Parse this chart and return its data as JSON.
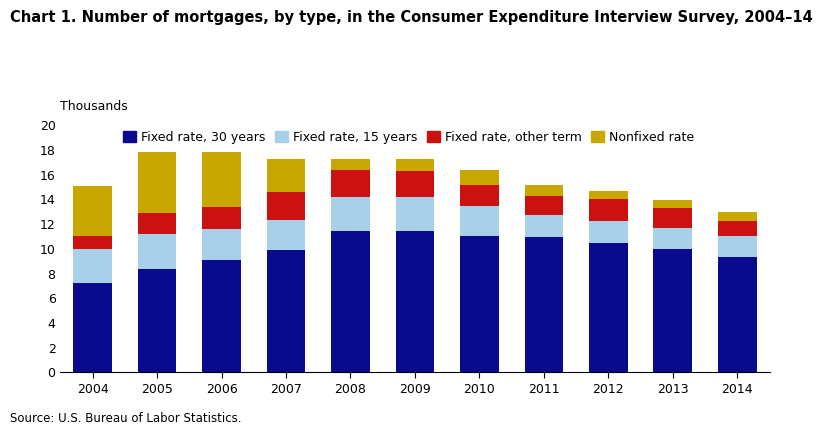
{
  "title": "Chart 1. Number of mortgages, by type, in the Consumer Expenditure Interview Survey, 2004–14",
  "ylabel": "Thousands",
  "source": "Source: U.S. Bureau of Labor Statistics.",
  "years": [
    2004,
    2005,
    2006,
    2007,
    2008,
    2009,
    2010,
    2011,
    2012,
    2013,
    2014
  ],
  "fixed_30": [
    7.2,
    8.3,
    9.0,
    9.8,
    11.4,
    11.4,
    11.0,
    10.9,
    10.4,
    9.9,
    9.3
  ],
  "fixed_15": [
    2.7,
    2.8,
    2.5,
    2.5,
    2.7,
    2.7,
    2.4,
    1.8,
    1.8,
    1.7,
    1.7
  ],
  "fixed_other": [
    1.1,
    1.7,
    1.8,
    2.2,
    2.2,
    2.1,
    1.7,
    1.5,
    1.8,
    1.6,
    1.2
  ],
  "nonfixed": [
    4.0,
    5.0,
    4.5,
    2.7,
    0.9,
    1.0,
    1.2,
    0.9,
    0.6,
    0.7,
    0.7
  ],
  "color_fixed_30": "#0a0a8f",
  "color_fixed_15": "#a8d0e8",
  "color_fixed_other": "#cc1111",
  "color_nonfixed": "#c8a800",
  "ylim": [
    0,
    20
  ],
  "yticks": [
    0,
    2,
    4,
    6,
    8,
    10,
    12,
    14,
    16,
    18,
    20
  ],
  "legend_labels": [
    "Fixed rate, 30 years",
    "Fixed rate, 15 years",
    "Fixed rate, other term",
    "Nonfixed rate"
  ],
  "title_fontsize": 10.5,
  "tick_fontsize": 9,
  "source_fontsize": 8.5
}
